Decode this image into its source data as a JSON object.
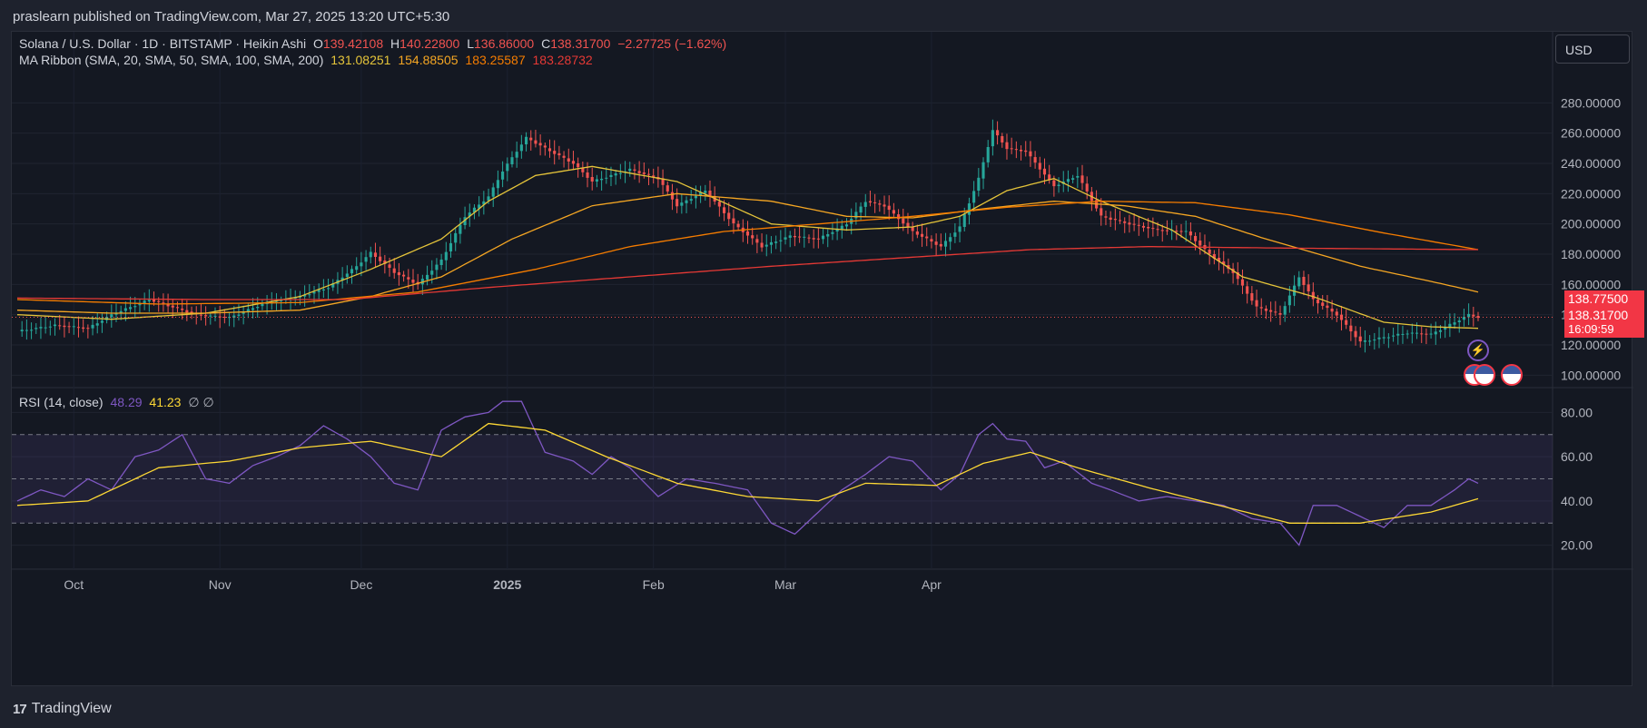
{
  "header": {
    "publisher": "praslearn published on TradingView.com, Mar 27, 2025 13:20 UTC+5:30"
  },
  "legend": {
    "symbol": "Solana / U.S. Dollar · 1D · BITSTAMP · Heikin Ashi",
    "o_label": "O",
    "o_value": "139.42108",
    "h_label": "H",
    "h_value": "140.22800",
    "l_label": "L",
    "l_value": "136.86000",
    "c_label": "C",
    "c_value": "138.31700",
    "change": "−2.27725 (−1.62%)",
    "ma_label": "MA Ribbon (SMA, 20, SMA, 50, SMA, 100, SMA, 200)",
    "ma_values": [
      "131.08251",
      "154.88505",
      "183.25587",
      "183.28732"
    ],
    "rsi_label": "RSI (14, close)",
    "rsi_value": "48.29",
    "rsi_ma_value": "41.23",
    "rsi_extra": "∅ ∅"
  },
  "currency_button": "USD",
  "price_tags": {
    "upper": "138.77500",
    "close": "138.31700",
    "countdown": "16:09:59"
  },
  "colors": {
    "up": "#26a69a",
    "down": "#f05350",
    "ma20": "#e5c43a",
    "ma50": "#f5a623",
    "ma100": "#f57c00",
    "ma200": "#e53935",
    "rsi": "#7e57c2",
    "rsi_ma": "#fdd835"
  },
  "footer": {
    "brand": "TradingView"
  },
  "chart_data": [
    {
      "type": "candlestick",
      "y_axis_ticks": [
        "100.00000",
        "120.00000",
        "140.00000",
        "160.00000",
        "180.00000",
        "200.00000",
        "220.00000",
        "240.00000",
        "260.00000",
        "280.00000"
      ],
      "ylim": [
        93,
        303
      ],
      "x_axis_labels": [
        "Oct",
        "Nov",
        "Dec",
        "2025",
        "Feb",
        "Mar",
        "Apr"
      ],
      "price_anchors": [
        [
          0,
          129
        ],
        [
          8,
          133
        ],
        [
          15,
          131
        ],
        [
          20,
          140
        ],
        [
          28,
          150
        ],
        [
          38,
          140
        ],
        [
          45,
          138
        ],
        [
          52,
          147
        ],
        [
          60,
          152
        ],
        [
          66,
          158
        ],
        [
          72,
          172
        ],
        [
          75,
          181
        ],
        [
          80,
          168
        ],
        [
          85,
          160
        ],
        [
          90,
          176
        ],
        [
          95,
          205
        ],
        [
          100,
          218
        ],
        [
          103,
          235
        ],
        [
          108,
          257
        ],
        [
          112,
          250
        ],
        [
          118,
          240
        ],
        [
          122,
          228
        ],
        [
          130,
          236
        ],
        [
          136,
          230
        ],
        [
          140,
          212
        ],
        [
          146,
          222
        ],
        [
          152,
          200
        ],
        [
          158,
          185
        ],
        [
          164,
          192
        ],
        [
          170,
          190
        ],
        [
          176,
          200
        ],
        [
          180,
          215
        ],
        [
          184,
          212
        ],
        [
          190,
          195
        ],
        [
          196,
          185
        ],
        [
          200,
          198
        ],
        [
          204,
          230
        ],
        [
          207,
          262
        ],
        [
          210,
          250
        ],
        [
          214,
          248
        ],
        [
          220,
          225
        ],
        [
          225,
          232
        ],
        [
          230,
          205
        ],
        [
          236,
          200
        ],
        [
          242,
          196
        ],
        [
          248,
          195
        ],
        [
          253,
          180
        ],
        [
          258,
          168
        ],
        [
          263,
          145
        ],
        [
          268,
          140
        ],
        [
          272,
          165
        ],
        [
          275,
          150
        ],
        [
          280,
          140
        ],
        [
          285,
          122
        ],
        [
          290,
          125
        ],
        [
          295,
          128
        ],
        [
          300,
          127
        ],
        [
          305,
          135
        ],
        [
          308,
          140
        ],
        [
          310,
          138.3
        ]
      ],
      "ma_lines": [
        {
          "name": "SMA 20",
          "points": [
            [
              0,
              140
            ],
            [
              20,
              137
            ],
            [
              40,
              141
            ],
            [
              60,
              152
            ],
            [
              75,
              170
            ],
            [
              90,
              190
            ],
            [
              100,
              215
            ],
            [
              110,
              232
            ],
            [
              122,
              238
            ],
            [
              140,
              228
            ],
            [
              160,
              200
            ],
            [
              176,
              196
            ],
            [
              190,
              198
            ],
            [
              200,
              205
            ],
            [
              210,
              222
            ],
            [
              220,
              230
            ],
            [
              230,
              215
            ],
            [
              245,
              196
            ],
            [
              260,
              165
            ],
            [
              275,
              152
            ],
            [
              290,
              135
            ],
            [
              300,
              132
            ],
            [
              310,
              131
            ]
          ]
        },
        {
          "name": "SMA 50",
          "points": [
            [
              0,
              143
            ],
            [
              20,
              141
            ],
            [
              40,
              141
            ],
            [
              60,
              143
            ],
            [
              75,
              152
            ],
            [
              90,
              165
            ],
            [
              105,
              190
            ],
            [
              122,
              212
            ],
            [
              140,
              220
            ],
            [
              160,
              215
            ],
            [
              176,
              205
            ],
            [
              190,
              204
            ],
            [
              205,
              210
            ],
            [
              220,
              215
            ],
            [
              235,
              212
            ],
            [
              250,
              205
            ],
            [
              265,
              190
            ],
            [
              285,
              172
            ],
            [
              300,
              162
            ],
            [
              310,
              155
            ]
          ]
        },
        {
          "name": "SMA 100",
          "points": [
            [
              0,
              150
            ],
            [
              30,
              147
            ],
            [
              60,
              148
            ],
            [
              85,
              155
            ],
            [
              110,
              170
            ],
            [
              130,
              185
            ],
            [
              150,
              195
            ],
            [
              170,
              200
            ],
            [
              190,
              205
            ],
            [
              210,
              211
            ],
            [
              230,
              215
            ],
            [
              250,
              214
            ],
            [
              270,
              206
            ],
            [
              290,
              194
            ],
            [
              310,
              183
            ]
          ]
        },
        {
          "name": "SMA 200",
          "points": [
            [
              0,
              151
            ],
            [
              40,
              150
            ],
            [
              70,
              150
            ],
            [
              100,
              158
            ],
            [
              130,
              165
            ],
            [
              160,
              172
            ],
            [
              190,
              178
            ],
            [
              215,
              183
            ],
            [
              240,
              185
            ],
            [
              270,
              184
            ],
            [
              310,
              183
            ]
          ]
        }
      ]
    },
    {
      "type": "line",
      "y_axis_ticks": [
        "20.00",
        "40.00",
        "60.00",
        "80.00"
      ],
      "ylim": [
        10,
        90
      ],
      "band": [
        30,
        70
      ],
      "midline": 50,
      "series": [
        {
          "name": "RSI",
          "points": [
            [
              0,
              40
            ],
            [
              5,
              45
            ],
            [
              10,
              42
            ],
            [
              15,
              50
            ],
            [
              20,
              45
            ],
            [
              25,
              60
            ],
            [
              30,
              63
            ],
            [
              35,
              70
            ],
            [
              40,
              50
            ],
            [
              45,
              48
            ],
            [
              50,
              56
            ],
            [
              55,
              60
            ],
            [
              60,
              65
            ],
            [
              65,
              74
            ],
            [
              70,
              68
            ],
            [
              75,
              60
            ],
            [
              80,
              48
            ],
            [
              85,
              45
            ],
            [
              90,
              72
            ],
            [
              95,
              78
            ],
            [
              100,
              80
            ],
            [
              103,
              85
            ],
            [
              107,
              85
            ],
            [
              112,
              62
            ],
            [
              118,
              58
            ],
            [
              122,
              52
            ],
            [
              126,
              60
            ],
            [
              130,
              55
            ],
            [
              136,
              42
            ],
            [
              142,
              50
            ],
            [
              148,
              48
            ],
            [
              155,
              45
            ],
            [
              160,
              30
            ],
            [
              165,
              25
            ],
            [
              170,
              35
            ],
            [
              175,
              45
            ],
            [
              180,
              52
            ],
            [
              185,
              60
            ],
            [
              190,
              58
            ],
            [
              196,
              45
            ],
            [
              200,
              52
            ],
            [
              204,
              70
            ],
            [
              207,
              75
            ],
            [
              210,
              68
            ],
            [
              214,
              67
            ],
            [
              218,
              55
            ],
            [
              222,
              58
            ],
            [
              228,
              48
            ],
            [
              232,
              45
            ],
            [
              238,
              40
            ],
            [
              244,
              42
            ],
            [
              250,
              40
            ],
            [
              256,
              38
            ],
            [
              262,
              32
            ],
            [
              268,
              30
            ],
            [
              272,
              20
            ],
            [
              275,
              38
            ],
            [
              280,
              38
            ],
            [
              285,
              33
            ],
            [
              290,
              28
            ],
            [
              295,
              38
            ],
            [
              300,
              38
            ],
            [
              305,
              45
            ],
            [
              308,
              50
            ],
            [
              310,
              48
            ]
          ]
        },
        {
          "name": "RSI MA",
          "points": [
            [
              0,
              38
            ],
            [
              15,
              40
            ],
            [
              30,
              55
            ],
            [
              45,
              58
            ],
            [
              60,
              64
            ],
            [
              75,
              67
            ],
            [
              90,
              60
            ],
            [
              100,
              75
            ],
            [
              112,
              72
            ],
            [
              125,
              60
            ],
            [
              140,
              48
            ],
            [
              155,
              42
            ],
            [
              170,
              40
            ],
            [
              180,
              48
            ],
            [
              195,
              47
            ],
            [
              205,
              57
            ],
            [
              215,
              62
            ],
            [
              225,
              55
            ],
            [
              240,
              46
            ],
            [
              255,
              38
            ],
            [
              270,
              30
            ],
            [
              285,
              30
            ],
            [
              300,
              35
            ],
            [
              310,
              41
            ]
          ]
        }
      ]
    }
  ]
}
